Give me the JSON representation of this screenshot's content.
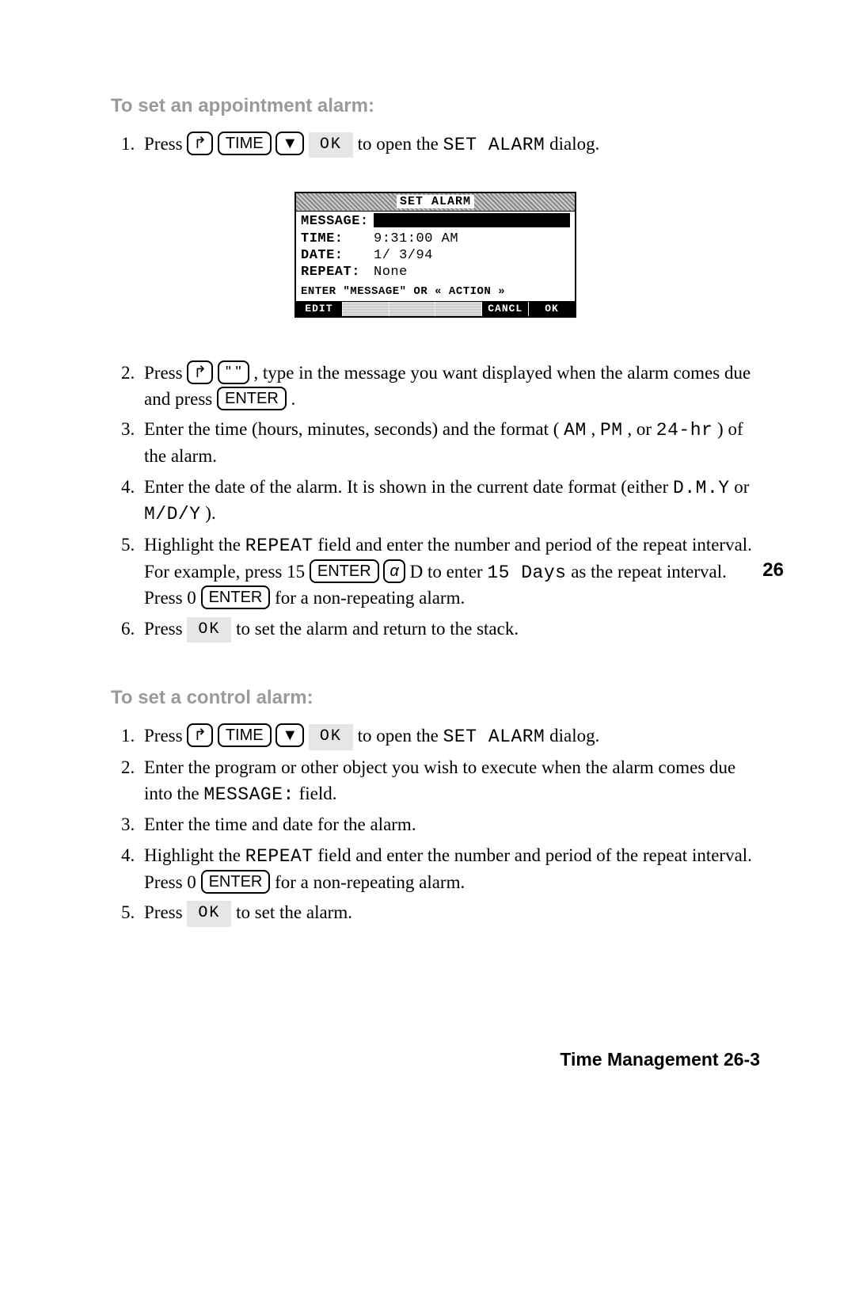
{
  "section1": {
    "heading": "To set an appointment alarm:",
    "steps": [
      {
        "prefix": "Press ",
        "seq_keys": {
          "shift": "↱",
          "time": "TIME",
          "down": "▼"
        },
        "softkey": "OK",
        "suffix": " to open the ",
        "lcd": "SET ALARM",
        "tail": " dialog."
      },
      {
        "prefix": "Press ",
        "seq_keys": {
          "shift": "↱",
          "quote": "\" \""
        },
        "mid": ", type in the message you want displayed when the alarm comes due and press ",
        "enter": "ENTER",
        "tail": "."
      },
      {
        "text_a": "Enter the time (hours, minutes, seconds) and the format (",
        "lcd_a": "AM",
        "text_b": ", ",
        "lcd_b": "PM",
        "text_c": ", or ",
        "lcd_c": "24-hr",
        "text_d": ") of the alarm."
      },
      {
        "text_a": "Enter the date of the alarm. It is shown in the current date format (either ",
        "lcd_a": "D.M.Y",
        "text_b": " or ",
        "lcd_b": "M/D/Y",
        "text_c": ")."
      },
      {
        "text_a": "Highlight the ",
        "lcd_a": "REPEAT",
        "text_b": " field and enter the number and period of the repeat interval. For example, press 15 ",
        "enter": "ENTER",
        "alpha": "α",
        "text_c": "D to enter ",
        "lcd_b": "15 Days",
        "text_d": " as the repeat interval. Press 0 ",
        "enter2": "ENTER",
        "text_e": " for a non-repeating alarm."
      },
      {
        "prefix": "Press ",
        "softkey": "OK",
        "suffix": " to set the alarm and return to the stack."
      }
    ]
  },
  "dialog": {
    "title": "SET ALARM",
    "rows": {
      "message_label": "MESSAGE:",
      "time_label": "TIME:",
      "time_value": "9:31:00  AM",
      "date_label": "DATE:",
      "date_value": "1/ 3/94",
      "repeat_label": "REPEAT:",
      "repeat_value": "None"
    },
    "prompt": "ENTER \"MESSAGE\" OR « ACTION »",
    "softkeys": [
      "EDIT",
      "",
      "",
      "",
      "CANCL",
      "OK"
    ]
  },
  "section2": {
    "heading": "To set a control alarm:",
    "steps": [
      {
        "prefix": "Press ",
        "seq_keys": {
          "shift": "↱",
          "time": "TIME",
          "down": "▼"
        },
        "softkey": "OK",
        "suffix": " to open the ",
        "lcd": "SET ALARM",
        "tail": " dialog."
      },
      {
        "text_a": "Enter the program or other object you wish to execute when the alarm comes due into the ",
        "lcd_a": "MESSAGE:",
        "text_b": " field."
      },
      {
        "plain": "Enter the time and date for the alarm."
      },
      {
        "text_a": "Highlight the ",
        "lcd_a": "REPEAT",
        "text_b": " field and enter the number and period of the repeat interval. Press 0 ",
        "enter": "ENTER",
        "text_c": " for a non-repeating alarm."
      },
      {
        "prefix": "Press ",
        "softkey": "OK",
        "suffix": " to set the alarm."
      }
    ]
  },
  "page_side": "26",
  "footer": "Time Management  26-3"
}
